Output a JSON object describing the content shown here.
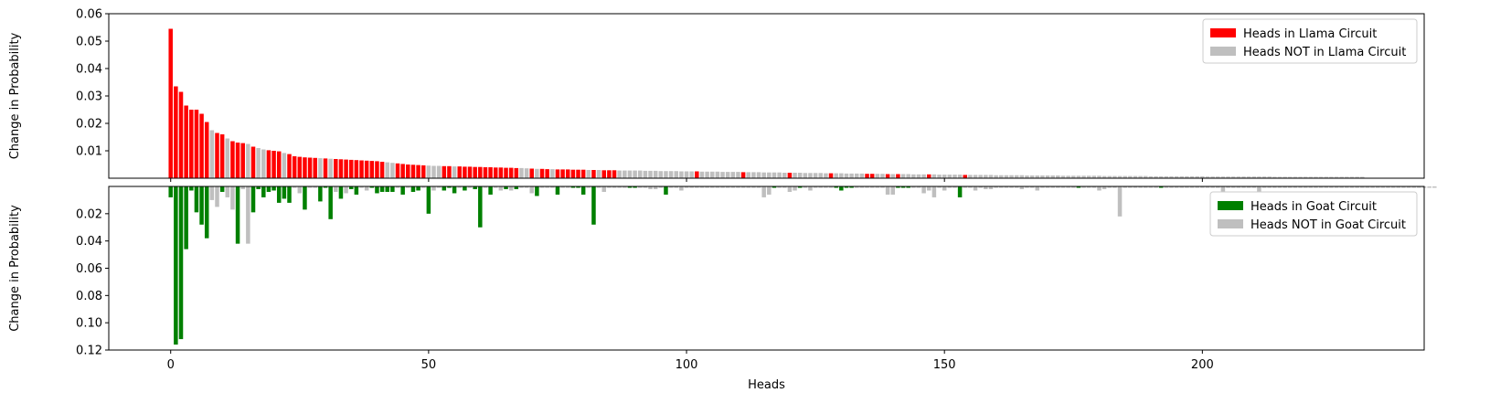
{
  "chart_data": [
    {
      "type": "bar",
      "ylabel": "Change in Probability",
      "xlabel": "",
      "xlim": [
        -12,
        243
      ],
      "ylim": [
        0,
        0.06
      ],
      "yticks": [
        0.01,
        0.02,
        0.03,
        0.04,
        0.05,
        0.06
      ],
      "ytick_labels": [
        "0.01",
        "0.02",
        "0.03",
        "0.04",
        "0.05",
        "0.06"
      ],
      "legend_position": "top-right",
      "legend": [
        {
          "label": "Heads in Llama Circuit",
          "color": "#ff0000"
        },
        {
          "label": "Heads NOT in Llama Circuit",
          "color": "#bfbfbf"
        }
      ],
      "colors": {
        "in_circuit": "#ff0000",
        "not_in_circuit": "#bfbfbf"
      },
      "values": [
        0.0545,
        0.0335,
        0.0315,
        0.0265,
        0.025,
        0.025,
        0.0235,
        0.0205,
        0.0175,
        0.0165,
        0.016,
        0.0145,
        0.0135,
        0.013,
        0.0128,
        0.0125,
        0.0115,
        0.011,
        0.0105,
        0.0102,
        0.01,
        0.0098,
        0.0092,
        0.0088,
        0.008,
        0.0078,
        0.0076,
        0.0075,
        0.0074,
        0.0073,
        0.0072,
        0.0071,
        0.007,
        0.0069,
        0.0068,
        0.0067,
        0.0066,
        0.0065,
        0.0064,
        0.0063,
        0.0062,
        0.006,
        0.0058,
        0.0056,
        0.0054,
        0.0052,
        0.005,
        0.0049,
        0.0048,
        0.0047,
        0.0046,
        0.0045,
        0.0045,
        0.0044,
        0.0044,
        0.0043,
        0.0043,
        0.0042,
        0.0042,
        0.0041,
        0.0041,
        0.004,
        0.004,
        0.0039,
        0.0039,
        0.0038,
        0.0038,
        0.0037,
        0.0037,
        0.0036,
        0.0035,
        0.0034,
        0.0034,
        0.0033,
        0.0033,
        0.0032,
        0.0032,
        0.0032,
        0.0031,
        0.0031,
        0.0031,
        0.003,
        0.003,
        0.003,
        0.0029,
        0.0029,
        0.0029,
        0.0028,
        0.0028,
        0.0028,
        0.0028,
        0.0028,
        0.0027,
        0.0027,
        0.0027,
        0.0026,
        0.0026,
        0.0026,
        0.0026,
        0.0025,
        0.0025,
        0.0025,
        0.0025,
        0.0024,
        0.0024,
        0.0024,
        0.0024,
        0.0023,
        0.0023,
        0.0023,
        0.0023,
        0.0022,
        0.0022,
        0.0022,
        0.0022,
        0.0021,
        0.0021,
        0.0021,
        0.0021,
        0.002,
        0.002,
        0.002,
        0.002,
        0.0019,
        0.0019,
        0.0019,
        0.0019,
        0.0018,
        0.0018,
        0.0018,
        0.0018,
        0.0017,
        0.0017,
        0.0017,
        0.0017,
        0.0016,
        0.0016,
        0.0016,
        0.0016,
        0.0015,
        0.0015,
        0.0015,
        0.0015,
        0.0015,
        0.0014,
        0.0014,
        0.0014,
        0.0014,
        0.0014,
        0.0013,
        0.0013,
        0.0013,
        0.0013,
        0.0013,
        0.0012,
        0.0012,
        0.0012,
        0.0012,
        0.0012,
        0.0012,
        0.0011,
        0.0011,
        0.0011,
        0.0011,
        0.0011,
        0.0011,
        0.001,
        0.001,
        0.001,
        0.001,
        0.001,
        0.001,
        0.001,
        0.0009,
        0.0009,
        0.0009,
        0.0009,
        0.0009,
        0.0009,
        0.0009,
        0.0009,
        0.0008,
        0.0008,
        0.0008,
        0.0008,
        0.0008,
        0.0008,
        0.0008,
        0.0008,
        0.0008,
        0.0007,
        0.0007,
        0.0007,
        0.0007,
        0.0007,
        0.0007,
        0.0007,
        0.0007,
        0.0007,
        0.0007,
        0.0007,
        0.0006,
        0.0006,
        0.0006,
        0.0006,
        0.0006,
        0.0006,
        0.0006,
        0.0006,
        0.0006,
        0.0006,
        0.0006,
        0.0006,
        0.0006,
        0.0005,
        0.0005,
        0.0005,
        0.0005,
        0.0005,
        0.0005,
        0.0005,
        0.0005,
        0.0005,
        0.0005,
        0.0005,
        0.0005,
        0.0005,
        0.0005,
        0.0005,
        0.0005,
        0.0005,
        0.0005
      ],
      "in_circuit": [
        1,
        1,
        1,
        1,
        1,
        1,
        1,
        1,
        0,
        1,
        1,
        0,
        1,
        1,
        1,
        0,
        1,
        0,
        0,
        1,
        1,
        1,
        0,
        1,
        1,
        1,
        1,
        1,
        1,
        0,
        1,
        0,
        1,
        1,
        1,
        1,
        1,
        1,
        1,
        1,
        1,
        1,
        0,
        0,
        1,
        1,
        1,
        1,
        1,
        1,
        0,
        0,
        0,
        1,
        1,
        0,
        1,
        1,
        1,
        1,
        1,
        1,
        1,
        1,
        1,
        1,
        1,
        1,
        0,
        0,
        1,
        0,
        1,
        1,
        0,
        1,
        1,
        1,
        1,
        1,
        1,
        0,
        1,
        0,
        1,
        1,
        1,
        0,
        0,
        0,
        0,
        0,
        0,
        0,
        0,
        0,
        0,
        0,
        0,
        0,
        0,
        0,
        1,
        0,
        0,
        0,
        0,
        0,
        0,
        0,
        0,
        1,
        0,
        0,
        0,
        0,
        0,
        0,
        0,
        0,
        1,
        0,
        0,
        0,
        0,
        0,
        0,
        0,
        1,
        0,
        0,
        0,
        0,
        0,
        0,
        1,
        1,
        0,
        0,
        1,
        0,
        1,
        0,
        0,
        0,
        0,
        0,
        1,
        0,
        0,
        0,
        0,
        0,
        0,
        1,
        0,
        0,
        0,
        0,
        0,
        0,
        0,
        0,
        0,
        0,
        0,
        0,
        0,
        0,
        0,
        0,
        0,
        0,
        0,
        0,
        0,
        0,
        0,
        0,
        0,
        0,
        0,
        0,
        0,
        0,
        0,
        0,
        0,
        0,
        0,
        0,
        0,
        0,
        0,
        0,
        0,
        0,
        0,
        0,
        0,
        0,
        0,
        0,
        0,
        0,
        0,
        0,
        0,
        0,
        0,
        0,
        0,
        0,
        0,
        0,
        0,
        0,
        0,
        0,
        0,
        0,
        0,
        0,
        0,
        0,
        0,
        0,
        0,
        0,
        0,
        0,
        0,
        0,
        0,
        0,
        0,
        0,
        0,
        0,
        0,
        0,
        0,
        0
      ]
    },
    {
      "type": "bar",
      "ylabel": "Change in Probability",
      "xlabel": "Heads",
      "xlim": [
        -12,
        243
      ],
      "ylim": [
        0,
        0.12
      ],
      "inverted": true,
      "yticks": [
        0.02,
        0.04,
        0.06,
        0.08,
        0.1,
        0.12
      ],
      "ytick_labels": [
        "0.02",
        "0.04",
        "0.06",
        "0.08",
        "0.10",
        "0.12"
      ],
      "xticks": [
        0,
        50,
        100,
        150,
        200
      ],
      "xtick_labels": [
        "0",
        "50",
        "100",
        "150",
        "200"
      ],
      "legend_position": "top-right",
      "legend": [
        {
          "label": "Heads in Goat Circuit",
          "color": "#008000"
        },
        {
          "label": "Heads NOT in Goat Circuit",
          "color": "#bfbfbf"
        }
      ],
      "colors": {
        "in_circuit": "#008000",
        "not_in_circuit": "#bfbfbf"
      },
      "values": [
        0.008,
        0.116,
        0.112,
        0.046,
        0.003,
        0.019,
        0.028,
        0.038,
        0.01,
        0.015,
        0.004,
        0.008,
        0.017,
        0.042,
        0.002,
        0.042,
        0.019,
        0.002,
        0.008,
        0.004,
        0.003,
        0.012,
        0.009,
        0.012,
        0.001,
        0.005,
        0.017,
        0.001,
        0.001,
        0.011,
        0.001,
        0.024,
        0.004,
        0.009,
        0.005,
        0.002,
        0.006,
        0.001,
        0.003,
        0.001,
        0.005,
        0.004,
        0.004,
        0.004,
        0.001,
        0.006,
        0.001,
        0.004,
        0.003,
        0.001,
        0.02,
        0.003,
        0.001,
        0.003,
        0.001,
        0.005,
        0.001,
        0.003,
        0.001,
        0.002,
        0.03,
        0.001,
        0.006,
        0.001,
        0.003,
        0.002,
        0.003,
        0.002,
        0.001,
        0.001,
        0.005,
        0.007,
        0.001,
        0.001,
        0.001,
        0.006,
        0.001,
        0.001,
        0.001,
        0.001,
        0.006,
        0.001,
        0.028,
        0.001,
        0.004,
        0.001,
        0.001,
        0.001,
        0.001,
        0.001,
        0.001,
        0.001,
        0.001,
        0.002,
        0.002,
        0.001,
        0.006,
        0.001,
        0.001,
        0.003,
        0.001,
        0.001,
        0.001,
        0.001,
        0.001,
        0.001,
        0.001,
        0.001,
        0.001,
        0.001,
        0.001,
        0.001,
        0.001,
        0.001,
        0.001,
        0.008,
        0.006,
        0.001,
        0.001,
        0.001,
        0.004,
        0.003,
        0.001,
        0.001,
        0.003,
        0.001,
        0.001,
        0.001,
        0.001,
        0.001,
        0.003,
        0.001,
        0.001,
        0.001,
        0.001,
        0.001,
        0.001,
        0.001,
        0.001,
        0.006,
        0.006,
        0.001,
        0.001,
        0.001,
        0.001,
        0.001,
        0.005,
        0.003,
        0.008,
        0.001,
        0.003,
        0.001,
        0.001,
        0.008,
        0.001,
        0.001,
        0.003,
        0.001,
        0.002,
        0.002,
        0.001,
        0.001,
        0.001,
        0.001,
        0.001,
        0.002,
        0.001,
        0.001,
        0.003,
        0.001,
        0.001,
        0.001,
        0.001,
        0.001,
        0.001,
        0.001,
        0.001,
        0.001,
        0.001,
        0.001,
        0.003,
        0.002,
        0.001,
        0.001,
        0.022,
        0.001,
        0.001,
        0.001,
        0.001,
        0.001,
        0.001,
        0.001,
        0.001,
        0.001,
        0.001,
        0.001,
        0.001,
        0.001,
        0.001,
        0.001,
        0.001,
        0.001,
        0.001,
        0.001,
        0.004,
        0.001,
        0.001,
        0.001,
        0.001,
        0.001,
        0.001,
        0.004,
        0.001,
        0.001,
        0.001,
        0.001,
        0.001,
        0.001,
        0.001,
        0.001,
        0.001,
        0.001,
        0.001,
        0.001,
        0.001,
        0.001,
        0.001,
        0.001,
        0.001,
        0.001,
        0.001,
        0.001,
        0.001,
        0.001,
        0.001,
        0.001,
        0.001,
        0.001,
        0.001,
        0.001,
        0.001,
        0.001,
        0.001,
        0.001,
        0.001,
        0.001
      ],
      "in_circuit": [
        1,
        1,
        1,
        1,
        1,
        1,
        1,
        1,
        0,
        0,
        1,
        0,
        0,
        1,
        0,
        0,
        1,
        1,
        1,
        1,
        1,
        1,
        1,
        1,
        0,
        0,
        1,
        0,
        0,
        1,
        1,
        1,
        0,
        1,
        0,
        1,
        1,
        0,
        0,
        1,
        1,
        1,
        1,
        1,
        0,
        1,
        0,
        1,
        1,
        0,
        1,
        0,
        0,
        1,
        1,
        1,
        0,
        1,
        0,
        1,
        1,
        0,
        1,
        0,
        0,
        1,
        0,
        1,
        0,
        0,
        0,
        1,
        0,
        0,
        0,
        1,
        0,
        0,
        1,
        1,
        1,
        0,
        1,
        0,
        0,
        0,
        0,
        0,
        0,
        1,
        1,
        0,
        0,
        0,
        0,
        0,
        1,
        0,
        0,
        0,
        0,
        0,
        0,
        0,
        0,
        0,
        0,
        0,
        0,
        0,
        0,
        0,
        0,
        0,
        0,
        0,
        0,
        1,
        0,
        0,
        0,
        0,
        1,
        0,
        0,
        0,
        0,
        0,
        0,
        1,
        1,
        1,
        1,
        0,
        0,
        0,
        0,
        0,
        0,
        0,
        0,
        1,
        1,
        1,
        0,
        0,
        0,
        0,
        0,
        0,
        0,
        0,
        0,
        1,
        0,
        0,
        0,
        0,
        0,
        0,
        0,
        0,
        0,
        0,
        0,
        0,
        0,
        0,
        0,
        0,
        0,
        0,
        0,
        0,
        0,
        0,
        1,
        0,
        0,
        0,
        0,
        0,
        0,
        0,
        0,
        0,
        0,
        0,
        0,
        0,
        0,
        0,
        1,
        0,
        0,
        0,
        0,
        0,
        0,
        0,
        0,
        0,
        0,
        0,
        0,
        0,
        0,
        0,
        0,
        0,
        0,
        0,
        0,
        0,
        0,
        0,
        0,
        0,
        0,
        0,
        0,
        0,
        0,
        0,
        0,
        0,
        0,
        0,
        0,
        0,
        0,
        0,
        0,
        0,
        0,
        0,
        0,
        0,
        0,
        0,
        0,
        0,
        0,
        0,
        0
      ]
    }
  ]
}
